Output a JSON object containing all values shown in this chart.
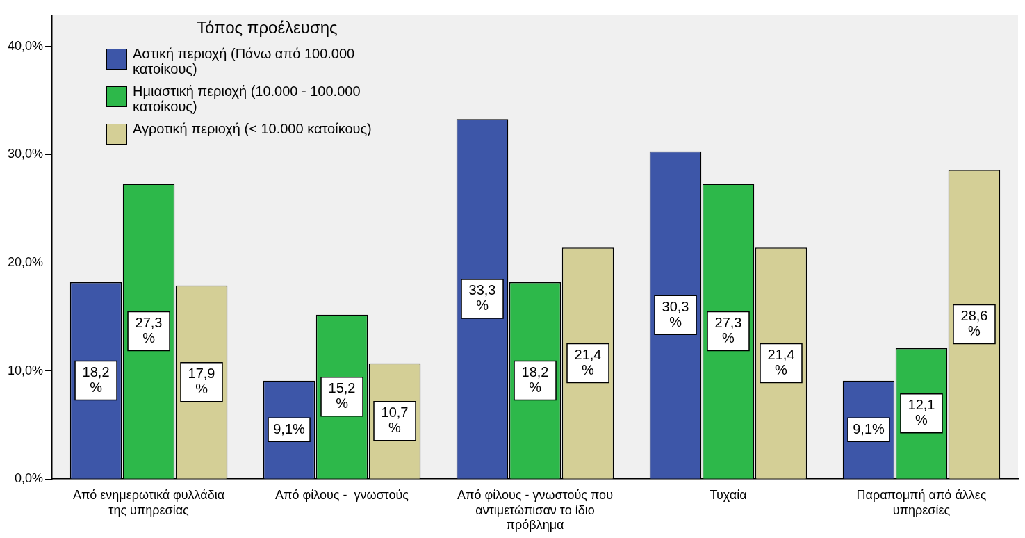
{
  "chart_data": {
    "type": "bar",
    "legend_title": "Τόπος προέλευσης",
    "legend": "top left",
    "grid": false,
    "categories": [
      "Από ενημερωτικά φυλλάδια της υπηρεσίας",
      "Από φίλους -  γνωστούς",
      "Από φίλους - γνωστούς που αντιμετώπισαν το ίδιο πρόβλημα",
      "Τυχαία",
      "Παραπομπή από άλλες υπηρεσίες"
    ],
    "series": [
      {
        "name": "Αστική περιοχή (Πάνω από 100.000 κατοίκους)",
        "color": "#3d56a8",
        "values": [
          18.2,
          9.1,
          33.3,
          30.3,
          9.1
        ],
        "value_labels": [
          "18,2%",
          "9,1%",
          "33,3%",
          "30,3%",
          "9,1%"
        ]
      },
      {
        "name": "Ημιαστική περιοχή (10.000 - 100.000 κατοίκους)",
        "color": "#2db84a",
        "values": [
          27.3,
          15.2,
          18.2,
          27.3,
          12.1
        ],
        "value_labels": [
          "27,3%",
          "15,2%",
          "18,2%",
          "27,3%",
          "12,1%"
        ]
      },
      {
        "name": "Αγροτική περιοχή (< 10.000 κατοίκους)",
        "color": "#d4cf96",
        "values": [
          17.9,
          10.7,
          21.4,
          21.4,
          28.6
        ],
        "value_labels": [
          "17,9%",
          "10,7%",
          "21,4%",
          "21,4%",
          "28,6%"
        ]
      }
    ],
    "ylim": [
      0,
      42.9
    ],
    "yticks": [
      {
        "value": 0,
        "label": "0,0%"
      },
      {
        "value": 10,
        "label": "10,0%"
      },
      {
        "value": 20,
        "label": "20,0%"
      },
      {
        "value": 30,
        "label": "30,0%"
      },
      {
        "value": 40,
        "label": "40,0%"
      }
    ]
  }
}
